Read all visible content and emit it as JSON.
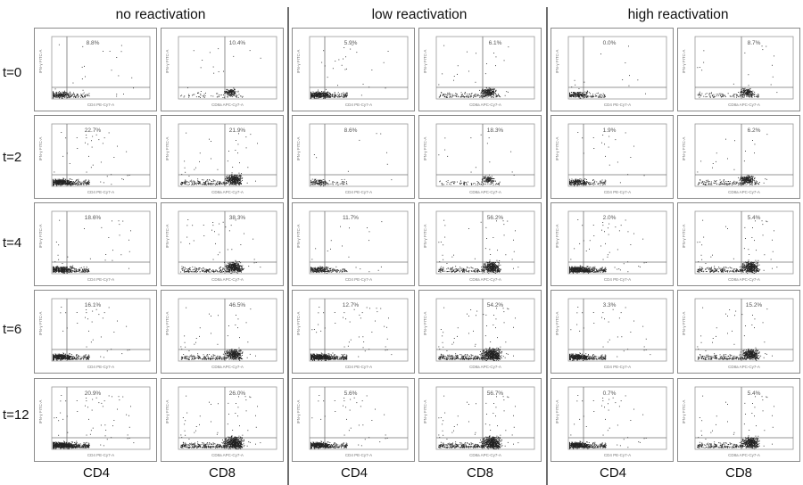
{
  "groups": [
    {
      "title": "no reactivation"
    },
    {
      "title": "low reactivation"
    },
    {
      "title": "high reactivation"
    }
  ],
  "time_labels": [
    "t=0",
    "t=2",
    "t=4",
    "t=6",
    "t=12"
  ],
  "column_labels": [
    "CD4",
    "CD8",
    "CD4",
    "CD8",
    "CD4",
    "CD8"
  ],
  "panel_y_axis_label": "IFN-γ FITC-A",
  "panel_x_axis_labels": [
    "CD4 PE-Cy7-A",
    "CD8a APC-Cy7-A"
  ],
  "chart_data": {
    "type": "scatter",
    "description_of_values": "percentage of cells in upper-right gate per panel",
    "groups": [
      "no reactivation",
      "low reactivation",
      "high reactivation"
    ],
    "markers": [
      "CD4",
      "CD8"
    ],
    "times": [
      "t=0",
      "t=2",
      "t=4",
      "t=6",
      "t=12"
    ],
    "percentages": [
      [
        "8.8%",
        "10.4%",
        "5.9%",
        "6.1%",
        "0.0%",
        "8.7%"
      ],
      [
        "22.7%",
        "21.9%",
        "8.6%",
        "18.3%",
        "1.9%",
        "6.2%"
      ],
      [
        "18.6%",
        "38.3%",
        "11.7%",
        "56.2%",
        "2.0%",
        "5.4%"
      ],
      [
        "16.1%",
        "46.5%",
        "12.7%",
        "54.2%",
        "3.3%",
        "15.2%"
      ],
      [
        "20.9%",
        "26.0%",
        "5.6%",
        "56.7%",
        "0.7%",
        "5.4%"
      ]
    ],
    "density": [
      [
        0.25,
        0.15,
        0.45,
        0.35,
        0.2,
        0.25
      ],
      [
        0.55,
        0.55,
        0.1,
        0.15,
        0.25,
        0.35
      ],
      [
        0.45,
        0.6,
        0.25,
        0.6,
        0.7,
        0.65
      ],
      [
        0.5,
        0.55,
        0.7,
        0.9,
        0.5,
        0.6
      ],
      [
        0.9,
        0.9,
        0.55,
        0.9,
        0.6,
        0.65
      ]
    ]
  }
}
